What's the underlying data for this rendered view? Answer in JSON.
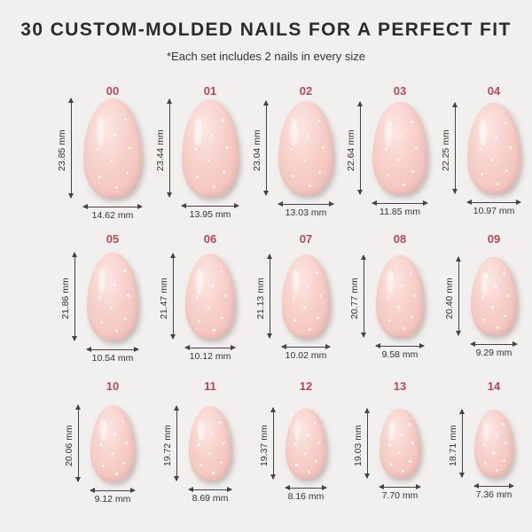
{
  "title": "30 CUSTOM-MOLDED NAILS FOR A PERFECT FIT",
  "subtitle": "*Each set includes 2 nails in every size",
  "nails": [
    {
      "size": "00",
      "length": "23.85 mm",
      "width": "14.62 mm"
    },
    {
      "size": "01",
      "length": "23.44 mm",
      "width": "13.95 mm"
    },
    {
      "size": "02",
      "length": "23.04 mm",
      "width": "13.03 mm"
    },
    {
      "size": "03",
      "length": "22.64 mm",
      "width": "11.85 mm"
    },
    {
      "size": "04",
      "length": "22.25 mm",
      "width": "10.97 mm"
    },
    {
      "size": "05",
      "length": "21.86 mm",
      "width": "10.54 mm"
    },
    {
      "size": "06",
      "length": "21.47 mm",
      "width": "10.12 mm"
    },
    {
      "size": "07",
      "length": "21.13 mm",
      "width": "10.02 mm"
    },
    {
      "size": "08",
      "length": "20.77 mm",
      "width": "9.58 mm"
    },
    {
      "size": "09",
      "length": "20.40 mm",
      "width": "9.29 mm"
    },
    {
      "size": "10",
      "length": "20.06 mm",
      "width": "9.12 mm"
    },
    {
      "size": "11",
      "length": "19.72 mm",
      "width": "8.69 mm"
    },
    {
      "size": "12",
      "length": "19.37 mm",
      "width": "8.16 mm"
    },
    {
      "size": "13",
      "length": "19.03 mm",
      "width": "7.70 mm"
    },
    {
      "size": "14",
      "length": "18.71 mm",
      "width": "7.36 mm"
    }
  ]
}
